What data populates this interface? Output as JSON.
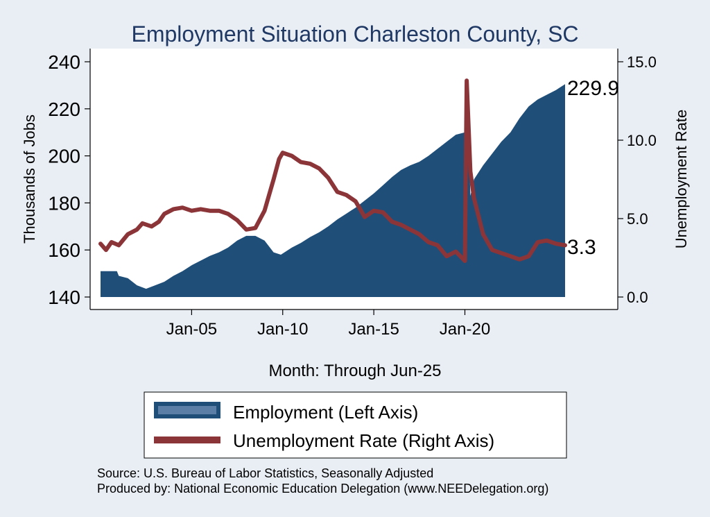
{
  "chart_data": {
    "type": "area",
    "title": "Employment Situation Charleston  County, SC",
    "xlabel": "Month: Through Jun-25",
    "ylabel_left": "Thousands of Jobs",
    "ylabel_right": "Unemployment Rate",
    "x_range": [
      "Jan-00",
      "Jun-25"
    ],
    "y_left_range": [
      140,
      240
    ],
    "y_right_range": [
      0,
      15
    ],
    "y_left_ticks": [
      140,
      160,
      180,
      200,
      220,
      240
    ],
    "y_right_ticks": [
      "0.0",
      "5.0",
      "10.0",
      "15.0"
    ],
    "x_ticks": [
      {
        "label": "Jan-05",
        "year": 2005
      },
      {
        "label": "Jan-10",
        "year": 2010
      },
      {
        "label": "Jan-15",
        "year": 2015
      },
      {
        "label": "Jan-20",
        "year": 2020
      }
    ],
    "series": [
      {
        "name": "Employment (Left Axis)",
        "axis": "left",
        "kind": "area",
        "color": "#1f4e79",
        "points": [
          [
            2000.0,
            151
          ],
          [
            2000.9,
            151
          ],
          [
            2001.0,
            149
          ],
          [
            2001.5,
            148
          ],
          [
            2002.0,
            145
          ],
          [
            2002.5,
            143.5
          ],
          [
            2003.0,
            145
          ],
          [
            2003.5,
            146.5
          ],
          [
            2004.0,
            149
          ],
          [
            2004.5,
            151
          ],
          [
            2005.0,
            153.5
          ],
          [
            2005.5,
            155.5
          ],
          [
            2006.0,
            157.5
          ],
          [
            2006.5,
            159
          ],
          [
            2007.0,
            161
          ],
          [
            2007.5,
            164
          ],
          [
            2008.0,
            166
          ],
          [
            2008.5,
            166
          ],
          [
            2009.0,
            164
          ],
          [
            2009.5,
            159
          ],
          [
            2009.9,
            158
          ],
          [
            2010.5,
            161
          ],
          [
            2011.0,
            163
          ],
          [
            2011.5,
            165.5
          ],
          [
            2012.0,
            167.5
          ],
          [
            2012.5,
            170
          ],
          [
            2013.0,
            173
          ],
          [
            2013.5,
            175.5
          ],
          [
            2014.0,
            178
          ],
          [
            2014.5,
            181
          ],
          [
            2015.0,
            184
          ],
          [
            2015.5,
            187.5
          ],
          [
            2016.0,
            191
          ],
          [
            2016.5,
            194
          ],
          [
            2017.0,
            196
          ],
          [
            2017.5,
            197.5
          ],
          [
            2018.0,
            200
          ],
          [
            2018.5,
            203
          ],
          [
            2019.0,
            206
          ],
          [
            2019.5,
            209
          ],
          [
            2020.0,
            210
          ],
          [
            2020.2,
            210
          ],
          [
            2020.3,
            183
          ],
          [
            2020.5,
            190
          ],
          [
            2021.0,
            196
          ],
          [
            2021.5,
            201
          ],
          [
            2022.0,
            206
          ],
          [
            2022.5,
            210
          ],
          [
            2023.0,
            216
          ],
          [
            2023.5,
            221
          ],
          [
            2024.0,
            224
          ],
          [
            2024.5,
            226
          ],
          [
            2025.0,
            228
          ],
          [
            2025.5,
            230.5
          ]
        ],
        "end_label": "229.9"
      },
      {
        "name": "Unemployment Rate (Right Axis)",
        "axis": "right",
        "kind": "line",
        "color": "#8b3539",
        "points": [
          [
            2000.0,
            3.4
          ],
          [
            2000.3,
            3.0
          ],
          [
            2000.6,
            3.5
          ],
          [
            2001.0,
            3.3
          ],
          [
            2001.5,
            4.0
          ],
          [
            2002.0,
            4.3
          ],
          [
            2002.3,
            4.7
          ],
          [
            2002.8,
            4.5
          ],
          [
            2003.2,
            4.8
          ],
          [
            2003.5,
            5.3
          ],
          [
            2004.0,
            5.6
          ],
          [
            2004.5,
            5.7
          ],
          [
            2005.0,
            5.5
          ],
          [
            2005.5,
            5.6
          ],
          [
            2006.0,
            5.5
          ],
          [
            2006.5,
            5.5
          ],
          [
            2007.0,
            5.3
          ],
          [
            2007.5,
            4.9
          ],
          [
            2008.0,
            4.3
          ],
          [
            2008.5,
            4.4
          ],
          [
            2009.0,
            5.5
          ],
          [
            2009.5,
            7.5
          ],
          [
            2009.8,
            8.8
          ],
          [
            2010.0,
            9.2
          ],
          [
            2010.5,
            9.0
          ],
          [
            2011.0,
            8.6
          ],
          [
            2011.5,
            8.5
          ],
          [
            2012.0,
            8.2
          ],
          [
            2012.5,
            7.6
          ],
          [
            2013.0,
            6.7
          ],
          [
            2013.5,
            6.5
          ],
          [
            2014.0,
            6.1
          ],
          [
            2014.5,
            5.1
          ],
          [
            2015.0,
            5.5
          ],
          [
            2015.5,
            5.4
          ],
          [
            2016.0,
            4.8
          ],
          [
            2016.5,
            4.6
          ],
          [
            2017.0,
            4.3
          ],
          [
            2017.5,
            4.0
          ],
          [
            2018.0,
            3.5
          ],
          [
            2018.5,
            3.3
          ],
          [
            2019.0,
            2.6
          ],
          [
            2019.5,
            2.9
          ],
          [
            2020.0,
            2.3
          ],
          [
            2020.1,
            13.8
          ],
          [
            2020.3,
            8.0
          ],
          [
            2020.5,
            6.3
          ],
          [
            2021.0,
            4.0
          ],
          [
            2021.5,
            3.0
          ],
          [
            2022.0,
            2.8
          ],
          [
            2022.5,
            2.6
          ],
          [
            2023.0,
            2.4
          ],
          [
            2023.5,
            2.6
          ],
          [
            2024.0,
            3.5
          ],
          [
            2024.5,
            3.6
          ],
          [
            2025.0,
            3.4
          ],
          [
            2025.5,
            3.3
          ]
        ],
        "end_label": "3.3"
      }
    ],
    "legend_placement": "bottom-center",
    "grid": false
  },
  "source_line_1": "Source: U.S. Bureau of Labor Statistics, Seasonally Adjusted",
  "source_line_2": "Produced by: National Economic Education Delegation (www.NEEDelegation.org)"
}
